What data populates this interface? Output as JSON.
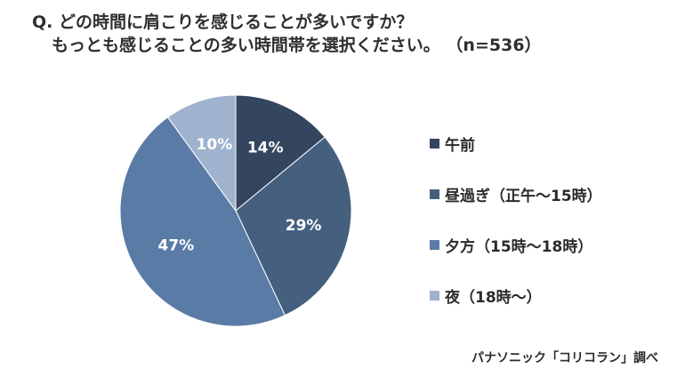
{
  "question": {
    "line1": "Q. どの時間に肩こりを感じることが多いですか？",
    "line2": "もっとも感じることの多い時間帯を選択ください。 （n=536）"
  },
  "source": "パナソニック「コリコラン」調べ",
  "chart_data": {
    "type": "pie",
    "title": "",
    "start_angle_deg": 0,
    "direction": "clockwise",
    "categories": [
      "午前",
      "昼過ぎ（正午～15時）",
      "夕方（15時～18時）",
      "夜（18時～）"
    ],
    "values": [
      14,
      29,
      47,
      10
    ],
    "labels": [
      "14%",
      "29%",
      "47%",
      "10%"
    ],
    "colors": [
      "#34455f",
      "#45607f",
      "#5a7ba6",
      "#9fb2ce"
    ],
    "label_colors": [
      "#ffffff",
      "#ffffff",
      "#ffffff",
      "#ffffff"
    ],
    "legend_position": "right"
  }
}
